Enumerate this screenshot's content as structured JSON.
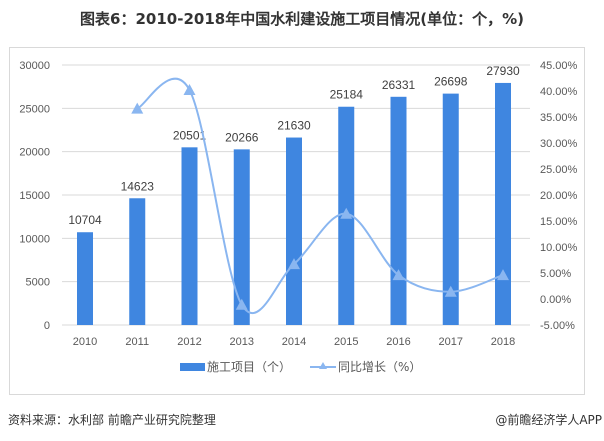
{
  "title": "图表6：2010-2018年中国水利建设施工项目情况(单位：个，%)",
  "footer": {
    "source": "资料来源：水利部 前瞻产业研究院整理",
    "brand": "@前瞻经济学人APP"
  },
  "chart_data": {
    "type": "bar+line",
    "title": "图表6：2010-2018年中国水利建设施工项目情况(单位：个，%)",
    "categories": [
      "2010",
      "2011",
      "2012",
      "2013",
      "2014",
      "2015",
      "2016",
      "2017",
      "2018"
    ],
    "series": [
      {
        "name": "施工项目（个）",
        "type": "bar",
        "axis": "left",
        "color": "#3f86e0",
        "values": [
          10704,
          14623,
          20501,
          20266,
          21630,
          25184,
          26331,
          26698,
          27930
        ]
      },
      {
        "name": "同比增长（%）",
        "type": "line",
        "axis": "right",
        "color": "#8ab6f0",
        "marker": "triangle",
        "smooth": true,
        "values": [
          null,
          36.6,
          40.2,
          -1.1,
          6.7,
          16.4,
          4.6,
          1.4,
          4.6
        ]
      }
    ],
    "y_left": {
      "range": [
        0,
        30000
      ],
      "ticks": [
        "0",
        "5000",
        "10000",
        "15000",
        "20000",
        "25000",
        "30000"
      ]
    },
    "y_right": {
      "range": [
        -5,
        45
      ],
      "ticks": [
        "-5.00%",
        "0.00%",
        "5.00%",
        "10.00%",
        "15.00%",
        "20.00%",
        "25.00%",
        "30.00%",
        "35.00%",
        "40.00%",
        "45.00%"
      ]
    },
    "grid": true,
    "legend": "bottom",
    "data_labels": true
  }
}
